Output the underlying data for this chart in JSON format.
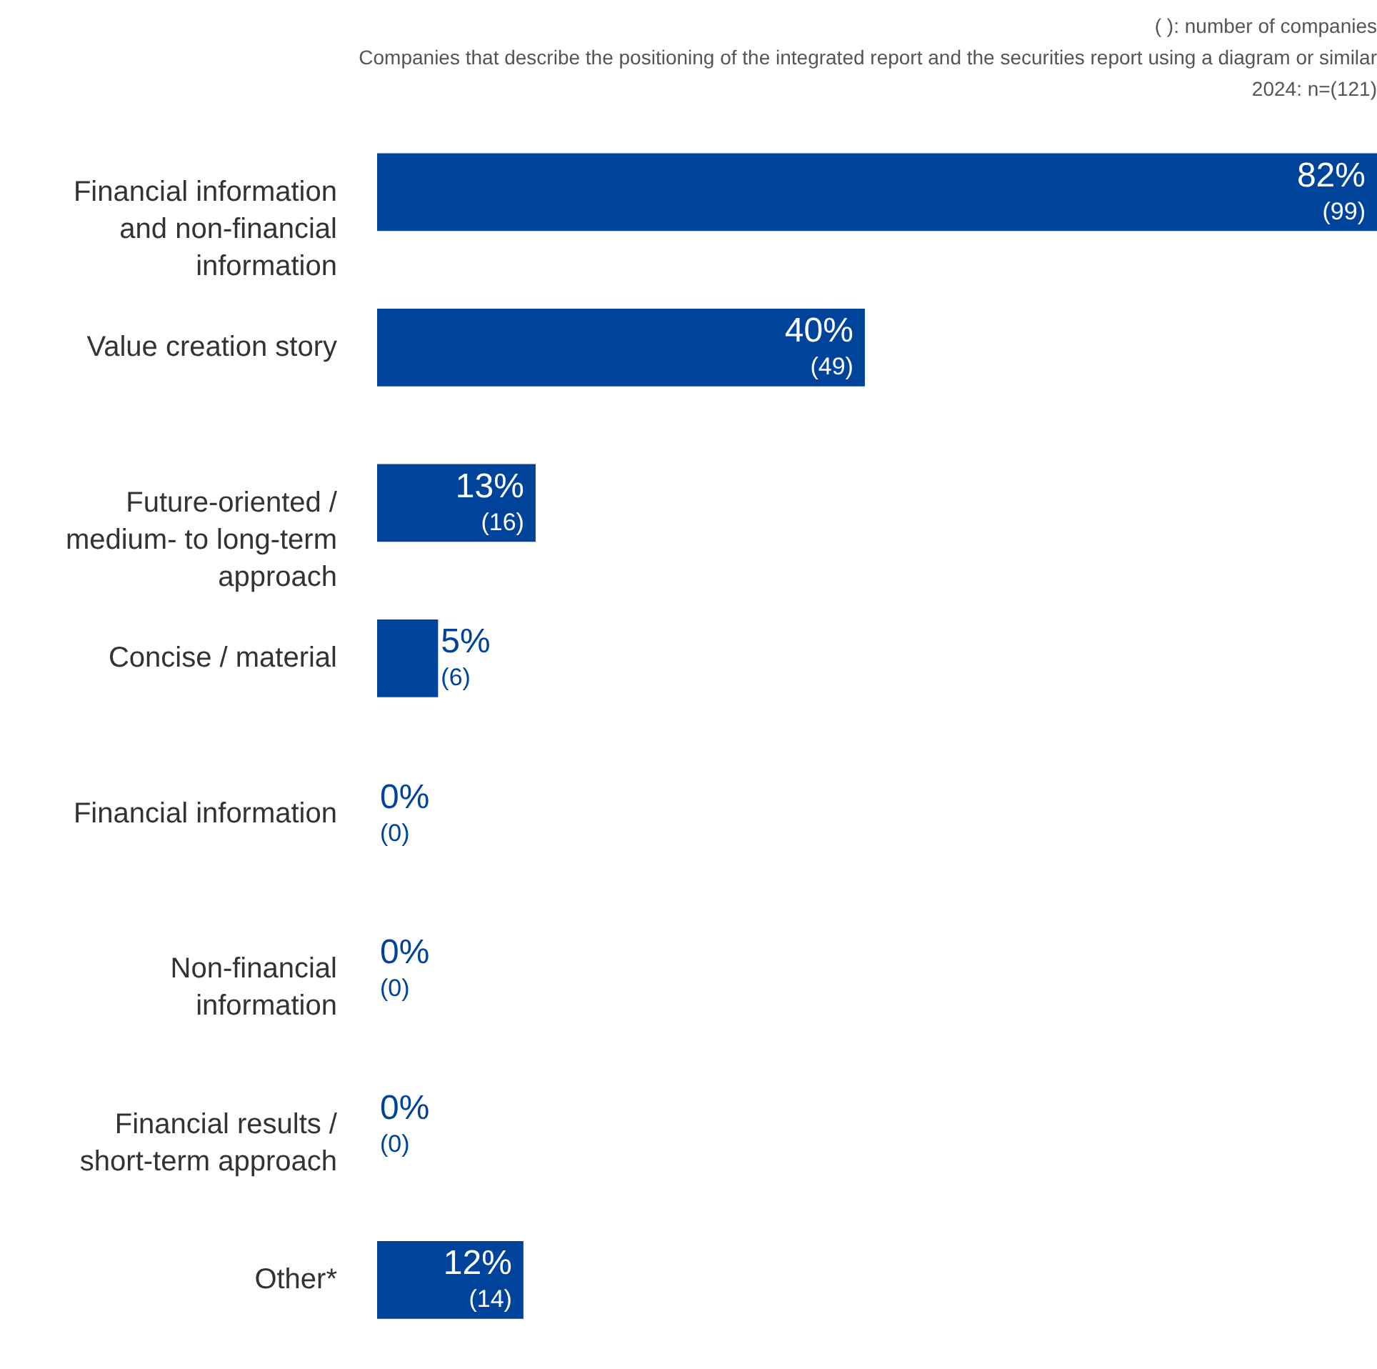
{
  "chart_data": {
    "type": "bar",
    "orientation": "horizontal",
    "categories": [
      "Financial information and non-financial information",
      "Value creation story",
      "Future-oriented / medium- to long-term approach",
      "Concise / material",
      "Financial information",
      "Non-financial information",
      "Financial results / short-term approach",
      "Other*"
    ],
    "values": [
      82,
      40,
      13,
      5,
      0,
      0,
      0,
      12
    ],
    "value_labels": [
      "82%",
      "40%",
      "13%",
      "5%",
      "0%",
      "0%",
      "0%",
      "12%"
    ],
    "color": "#00439a",
    "annotations": [
      "( ): number of companies",
      "Companies that describe the positioning of the integrated report and the securities report using a diagram or similar",
      "2024: n=(121)",
      {
        "text": "(99)",
        "x": 82,
        "y": "Financial information and non-financial information"
      },
      {
        "text": "(49)",
        "x": 40,
        "y": "Value creation story"
      },
      {
        "text": "(16)",
        "x": 13,
        "y": "Future-oriented / medium- to long-term approach"
      },
      {
        "text": "(6)",
        "x": 5,
        "y": "Concise / material"
      },
      {
        "text": "(0)",
        "x": 0,
        "y": "Financial information"
      },
      {
        "text": "(0)",
        "x": 0,
        "y": "Non-financial information"
      },
      {
        "text": "(0)",
        "x": 0,
        "y": "Financial results / short-term approach"
      },
      {
        "text": "(14)",
        "x": 12,
        "y": "Other*"
      }
    ]
  }
}
